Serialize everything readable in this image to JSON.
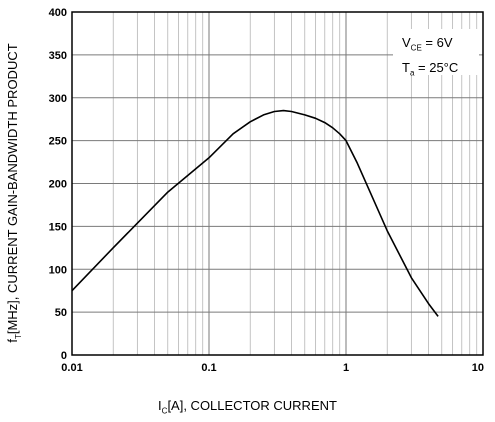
{
  "chart_data": {
    "type": "line",
    "xscale": "log",
    "xlim": [
      0.01,
      10
    ],
    "ylim": [
      0,
      400
    ],
    "x_ticks": [
      "0.01",
      "0.1",
      "1",
      "10"
    ],
    "y_ticks": [
      "0",
      "50",
      "100",
      "150",
      "200",
      "250",
      "300",
      "350",
      "400"
    ],
    "grid": true,
    "ylabel": {
      "main": "f",
      "sub": "T",
      "rest": "[MHz], CURRENT GAIN-BANDWIDTH PRODUCT"
    },
    "xlabel": {
      "main": "I",
      "sub": "C",
      "rest": "[A], COLLECTOR CURRENT"
    },
    "annotation": {
      "line1": {
        "main": "V",
        "sub": "CE",
        "rest": " = 6V"
      },
      "line2": {
        "main": "T",
        "sub": "a",
        "rest": " = 25°C"
      }
    },
    "series": [
      {
        "x": [
          0.01,
          0.02,
          0.05,
          0.1,
          0.15,
          0.2,
          0.25,
          0.3,
          0.35,
          0.4,
          0.5,
          0.6,
          0.7,
          0.8,
          0.9,
          1.0,
          1.2,
          1.5,
          2,
          3,
          4,
          4.7
        ],
        "y": [
          75,
          125,
          190,
          230,
          258,
          272,
          280,
          284,
          285,
          284,
          280,
          276,
          271,
          265,
          258,
          250,
          225,
          190,
          145,
          90,
          60,
          45
        ]
      }
    ]
  }
}
